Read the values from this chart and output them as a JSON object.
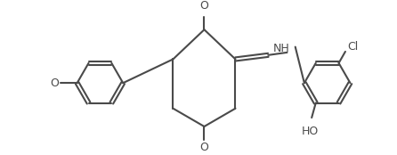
{
  "line_color": "#4a4a4a",
  "bg_color": "#ffffff",
  "line_width": 1.5,
  "font_size": 9,
  "atoms": {
    "O_label": "O",
    "HO_label": "HO",
    "Cl_label": "Cl",
    "NH_label": "NH",
    "O_top_label": "O"
  }
}
